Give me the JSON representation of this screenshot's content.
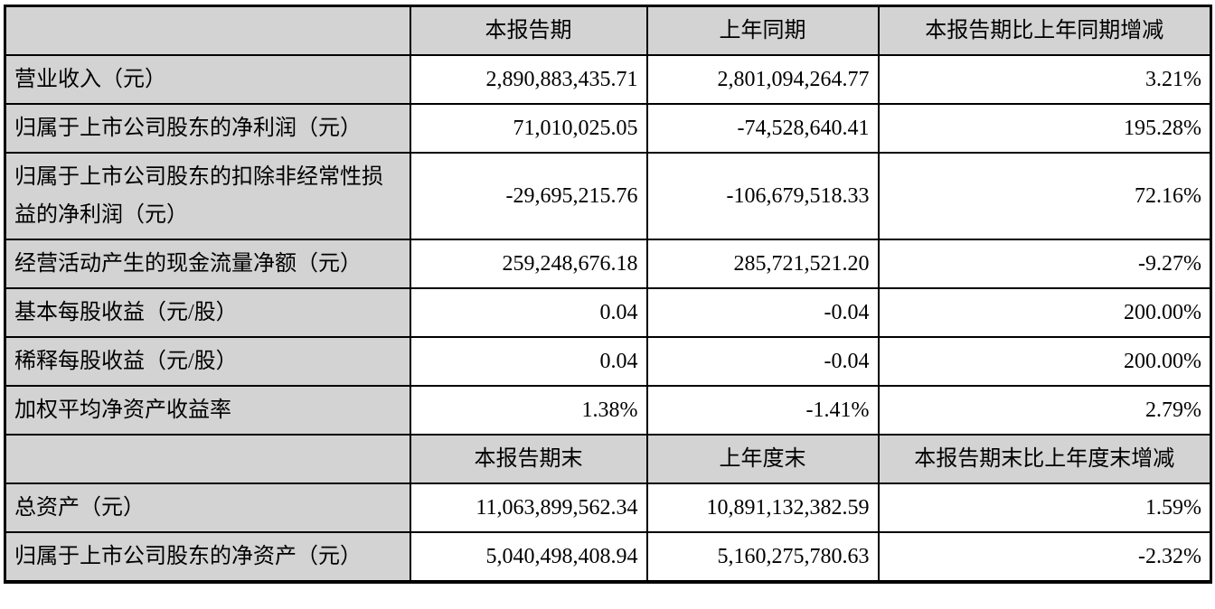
{
  "document": {
    "type": "financial-summary-table",
    "colors": {
      "header_bg": "#d3d3d3",
      "label_bg": "#d3d3d3",
      "border": "#000000",
      "page_bg": "#ffffff",
      "text": "#000000"
    }
  },
  "table": {
    "period_header": {
      "corner": "",
      "current": "本报告期",
      "prior": "上年同期",
      "change": "本报告期比上年同期增减"
    },
    "period_rows": [
      {
        "label": "营业收入（元）",
        "current": "2,890,883,435.71",
        "prior": "2,801,094,264.77",
        "change": "3.21%"
      },
      {
        "label": "归属于上市公司股东的净利润（元）",
        "current": "71,010,025.05",
        "prior": "-74,528,640.41",
        "change": "195.28%"
      },
      {
        "label": "归属于上市公司股东的扣除非经常性损益的净利润（元）",
        "current": "-29,695,215.76",
        "prior": "-106,679,518.33",
        "change": "72.16%"
      },
      {
        "label": "经营活动产生的现金流量净额（元）",
        "current": "259,248,676.18",
        "prior": "285,721,521.20",
        "change": "-9.27%"
      },
      {
        "label": "基本每股收益（元/股）",
        "current": "0.04",
        "prior": "-0.04",
        "change": "200.00%"
      },
      {
        "label": "稀释每股收益（元/股）",
        "current": "0.04",
        "prior": "-0.04",
        "change": "200.00%"
      },
      {
        "label": "加权平均净资产收益率",
        "current": "1.38%",
        "prior": "-1.41%",
        "change": "2.79%"
      }
    ],
    "balance_header": {
      "corner": "",
      "current": "本报告期末",
      "prior": "上年度末",
      "change": "本报告期末比上年度末增减"
    },
    "balance_rows": [
      {
        "label": "总资产（元）",
        "current": "11,063,899,562.34",
        "prior": "10,891,132,382.59",
        "change": "1.59%"
      },
      {
        "label": "归属于上市公司股东的净资产（元）",
        "current": "5,040,498,408.94",
        "prior": "5,160,275,780.63",
        "change": "-2.32%"
      }
    ]
  }
}
